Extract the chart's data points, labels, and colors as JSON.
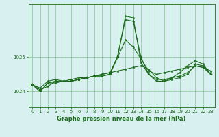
{
  "xlabel": "Graphe pression niveau de la mer (hPa)",
  "hours": [
    0,
    1,
    2,
    3,
    4,
    5,
    6,
    7,
    8,
    9,
    10,
    11,
    12,
    13,
    14,
    15,
    16,
    17,
    18,
    19,
    20,
    21,
    22,
    23
  ],
  "series": [
    [
      1024.2,
      1024.1,
      1024.3,
      1024.35,
      1024.3,
      1024.3,
      1024.35,
      1024.4,
      1024.45,
      1024.5,
      1024.55,
      1025.0,
      1025.5,
      1025.3,
      1024.95,
      1024.6,
      1024.5,
      1024.55,
      1024.6,
      1024.65,
      1024.7,
      1024.75,
      1024.7,
      1024.6
    ],
    [
      1024.2,
      1024.0,
      1024.25,
      1024.3,
      1024.3,
      1024.35,
      1024.4,
      1024.4,
      1024.45,
      1024.45,
      1024.5,
      1025.05,
      1026.1,
      1026.05,
      1025.0,
      1024.5,
      1024.35,
      1024.35,
      1024.4,
      1024.45,
      1024.55,
      1024.75,
      1024.7,
      1024.5
    ],
    [
      1024.2,
      1024.0,
      1024.25,
      1024.25,
      1024.3,
      1024.3,
      1024.35,
      1024.4,
      1024.45,
      1024.45,
      1024.5,
      1025.0,
      1026.2,
      1026.15,
      1024.85,
      1024.5,
      1024.3,
      1024.3,
      1024.35,
      1024.4,
      1024.5,
      1024.8,
      1024.75,
      1024.5
    ],
    [
      1024.2,
      1024.05,
      1024.15,
      1024.3,
      1024.3,
      1024.3,
      1024.35,
      1024.4,
      1024.45,
      1024.5,
      1024.55,
      1024.6,
      1024.65,
      1024.7,
      1024.75,
      1024.65,
      1024.4,
      1024.3,
      1024.4,
      1024.55,
      1024.75,
      1024.9,
      1024.8,
      1024.5
    ]
  ],
  "line_color": "#1a6b1a",
  "marker_color": "#1a6b1a",
  "bg_color": "#d8f0f0",
  "grid_color": "#5aaa5a",
  "axis_color": "#1a6b1a",
  "text_color": "#1a6b1a",
  "ylim": [
    1023.55,
    1026.55
  ],
  "yticks": [
    1024,
    1025
  ],
  "xlim": [
    -0.5,
    23.5
  ],
  "xticks": [
    0,
    1,
    2,
    3,
    4,
    5,
    6,
    7,
    8,
    9,
    10,
    11,
    12,
    13,
    14,
    15,
    16,
    17,
    18,
    19,
    20,
    21,
    22,
    23
  ]
}
